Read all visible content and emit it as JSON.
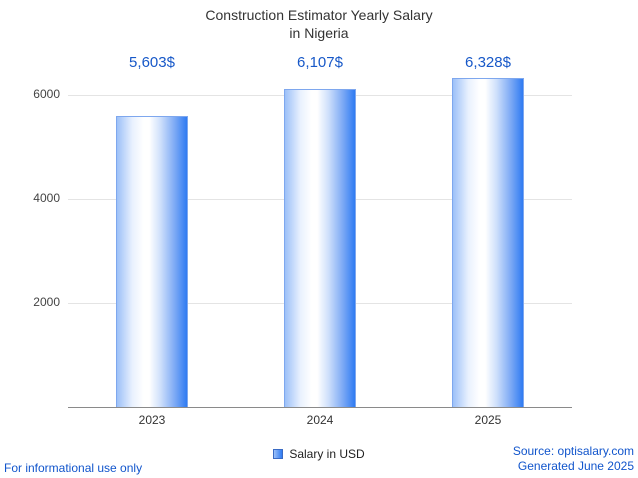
{
  "chart_data": {
    "type": "bar",
    "title": "Construction Estimator Yearly Salary in Nigeria",
    "title_lines": [
      "Construction Estimator Yearly Salary",
      "in Nigeria"
    ],
    "categories": [
      "2023",
      "2024",
      "2025"
    ],
    "values": [
      5603,
      6107,
      6328
    ],
    "value_labels": [
      "5,603$",
      "6,107$",
      "6,328$"
    ],
    "series": [
      {
        "name": "Salary in USD",
        "values": [
          5603,
          6107,
          6328
        ]
      }
    ],
    "legend": [
      "Salary in USD"
    ],
    "legend_position": "bottom",
    "xlabel": "",
    "ylabel": "",
    "ylim": [
      0,
      6500
    ],
    "yticks": [
      2000,
      4000,
      6000
    ],
    "grid": true,
    "colors": {
      "value_label": "#1758c8",
      "bar_edge": "#7ea7ee",
      "bar_gradient": [
        "#9cc0f8",
        "#ffffff",
        "#2f7bf2"
      ],
      "axis": "#8a8a8a",
      "gridline": "#e4e4e4",
      "footer_link": "#1155cc"
    }
  },
  "footer": {
    "disclaimer": "For informational use only",
    "source": "Source: optisalary.com",
    "generated": "Generated June 2025"
  }
}
